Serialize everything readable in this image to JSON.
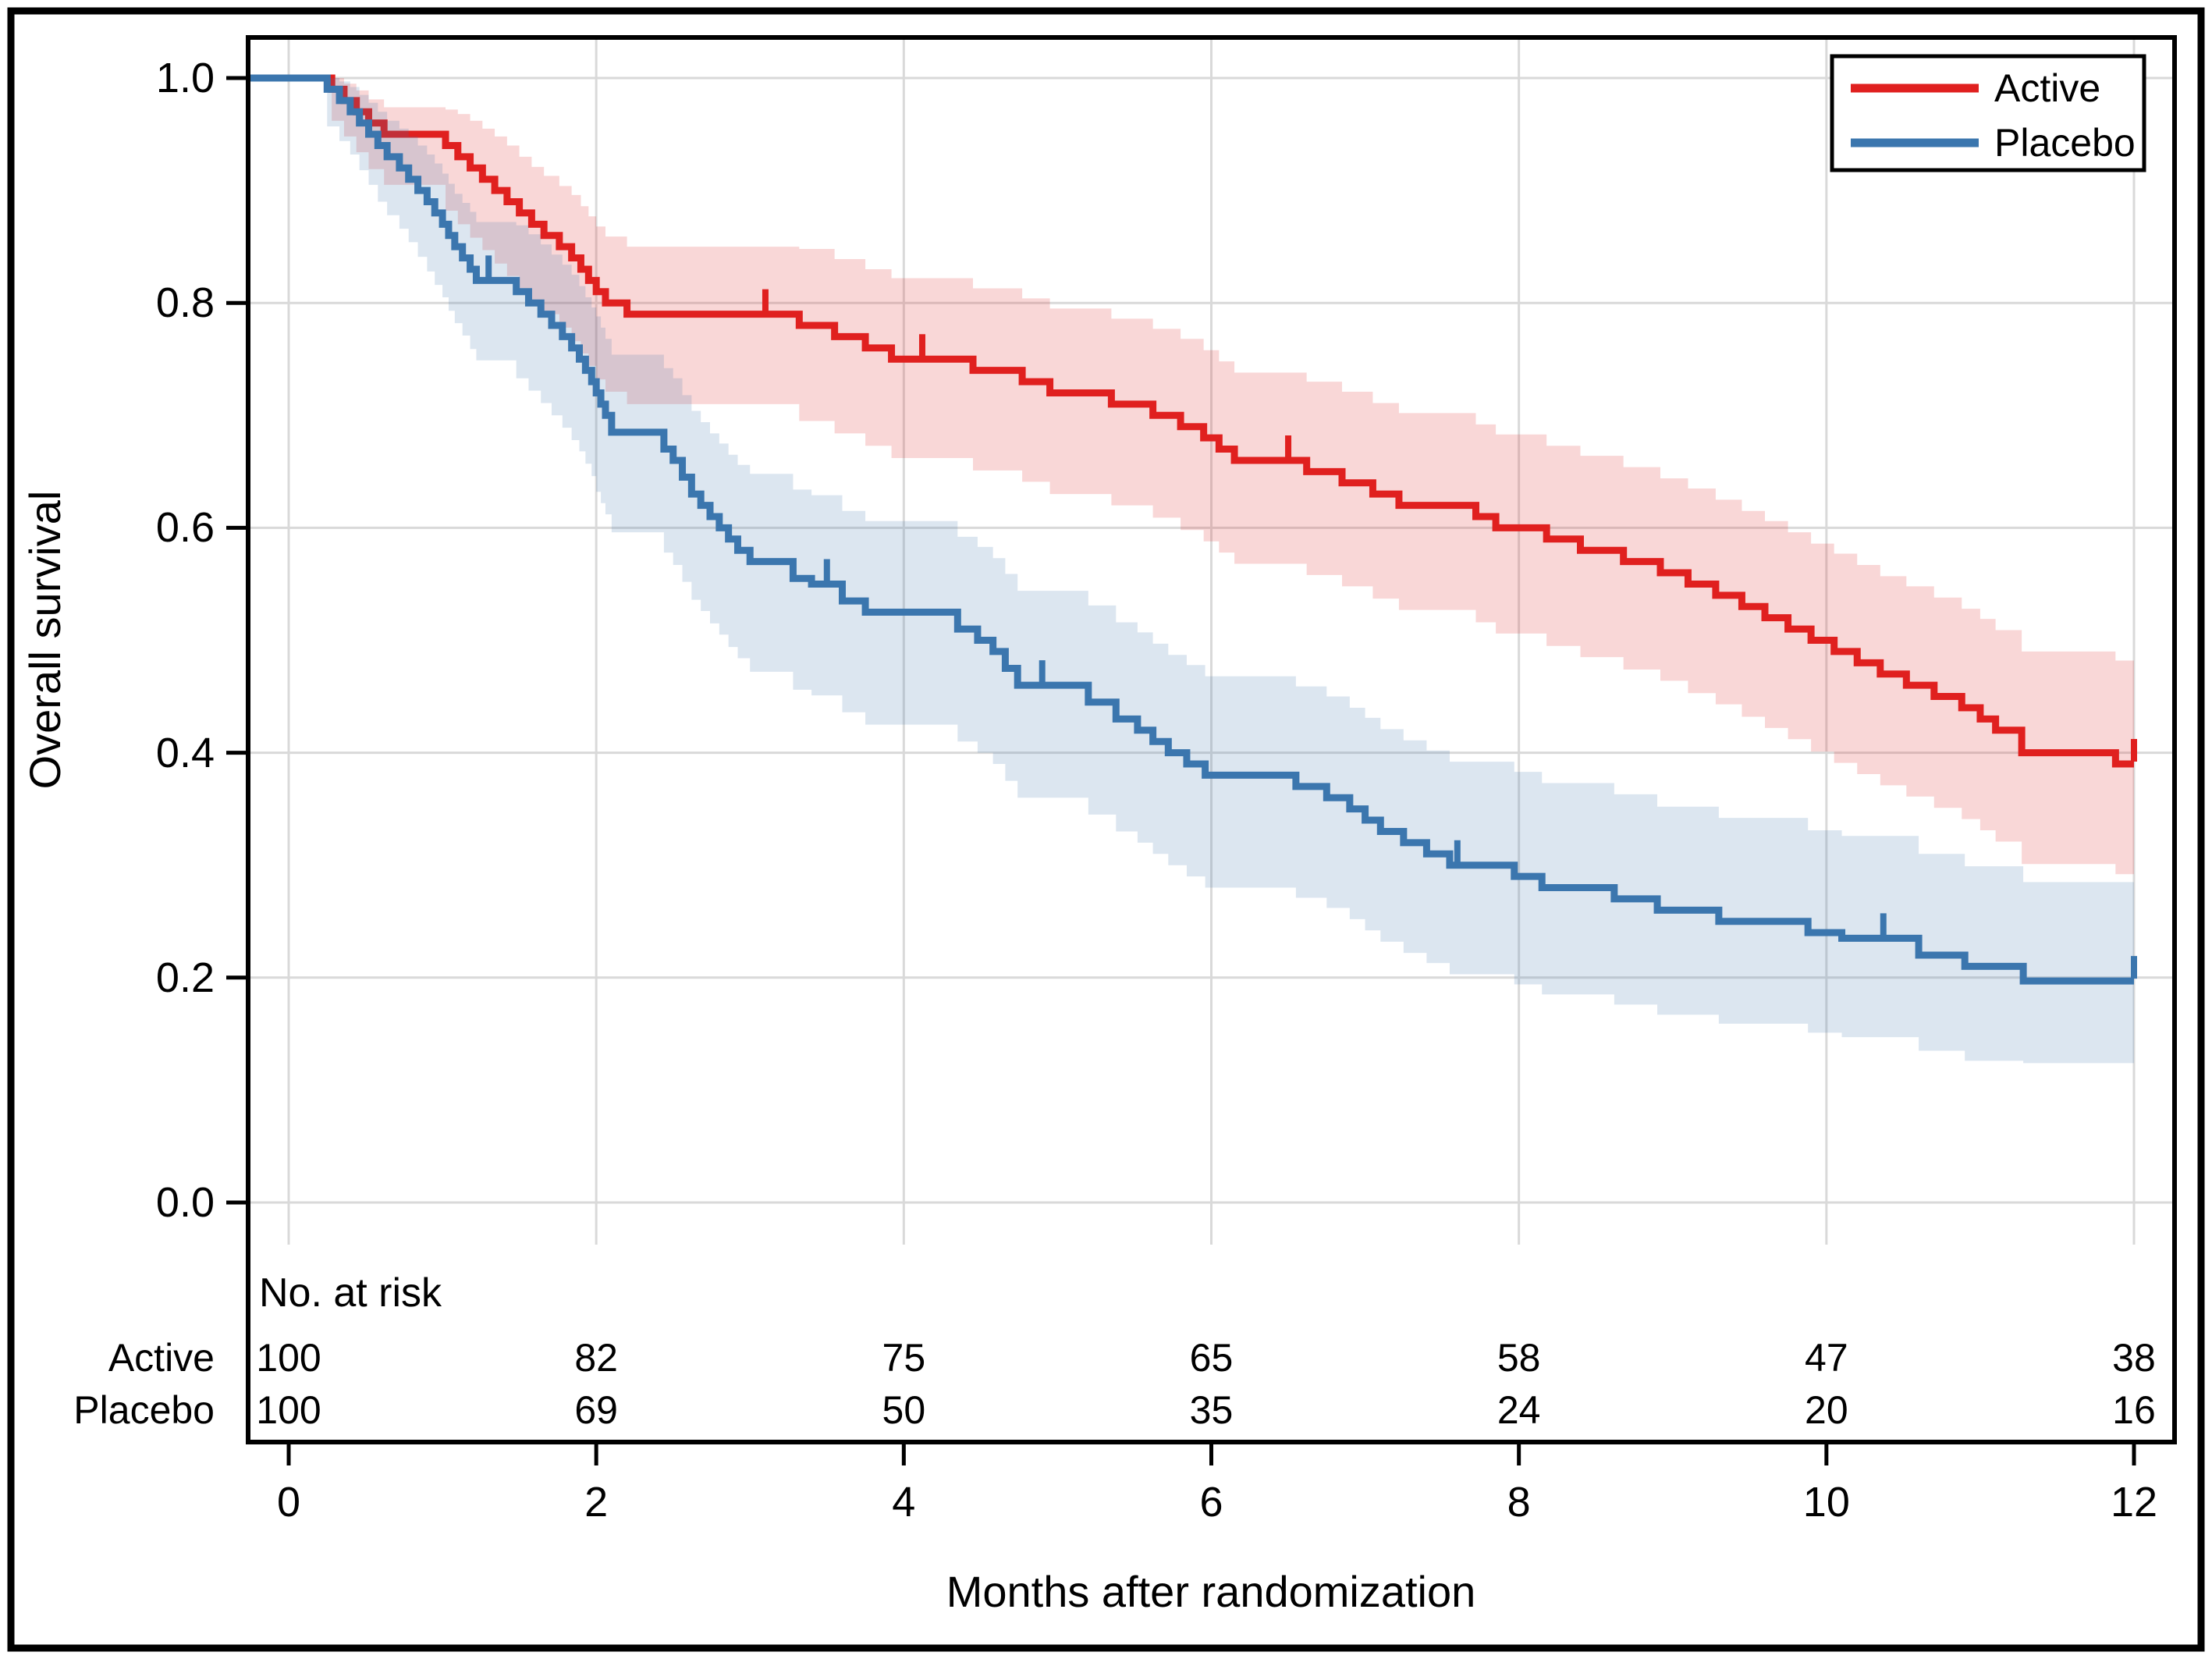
{
  "chart_data": {
    "type": "km_survival_step",
    "xlabel": "Months after randomization",
    "ylabel": "Overall survival",
    "xlim": [
      0,
      12
    ],
    "ylim": [
      0.0,
      1.0
    ],
    "x_ticks": [
      "0",
      "2",
      "4",
      "6",
      "8",
      "10",
      "12"
    ],
    "x_tick_values": [
      0,
      2,
      4,
      6,
      8,
      10,
      12
    ],
    "y_ticks": [
      "1.0",
      "0.8",
      "0.6",
      "0.4",
      "0.2",
      "0.0"
    ],
    "y_tick_values": [
      1.0,
      0.8,
      0.6,
      0.4,
      0.2,
      0.0
    ],
    "grid": true,
    "legend_position": "top-right",
    "colors": {
      "active_line": "#e0201f",
      "placebo_line": "#3b76ae",
      "gridline": "#d9d9d9",
      "frame": "#000000",
      "ci_band_opacity": 0.18
    },
    "series": [
      {
        "name": "Active",
        "color": "#e0201f",
        "steps": [
          [
            0.0,
            1.0,
            1.0,
            1.0
          ],
          [
            0.28,
            0.99,
            0.962,
            1.0
          ],
          [
            0.36,
            0.98,
            0.948,
            0.995
          ],
          [
            0.44,
            0.97,
            0.934,
            0.989
          ],
          [
            0.52,
            0.96,
            0.919,
            0.981
          ],
          [
            0.62,
            0.95,
            0.905,
            0.974
          ],
          [
            1.02,
            0.94,
            0.882,
            0.972
          ],
          [
            1.1,
            0.93,
            0.87,
            0.968
          ],
          [
            1.18,
            0.92,
            0.858,
            0.962
          ],
          [
            1.26,
            0.91,
            0.847,
            0.955
          ],
          [
            1.34,
            0.9,
            0.835,
            0.948
          ],
          [
            1.42,
            0.89,
            0.824,
            0.94
          ],
          [
            1.5,
            0.88,
            0.812,
            0.93
          ],
          [
            1.58,
            0.87,
            0.801,
            0.921
          ],
          [
            1.66,
            0.86,
            0.79,
            0.913
          ],
          [
            1.76,
            0.85,
            0.778,
            0.904
          ],
          [
            1.84,
            0.84,
            0.766,
            0.896
          ],
          [
            1.9,
            0.83,
            0.755,
            0.886
          ],
          [
            1.95,
            0.82,
            0.744,
            0.877
          ],
          [
            2.0,
            0.81,
            0.732,
            0.868
          ],
          [
            2.06,
            0.8,
            0.721,
            0.859
          ],
          [
            2.2,
            0.79,
            0.71,
            0.85
          ],
          [
            3.32,
            0.78,
            0.695,
            0.848
          ],
          [
            3.55,
            0.77,
            0.684,
            0.839
          ],
          [
            3.75,
            0.76,
            0.673,
            0.83
          ],
          [
            3.92,
            0.75,
            0.662,
            0.822
          ],
          [
            4.45,
            0.74,
            0.651,
            0.813
          ],
          [
            4.77,
            0.73,
            0.641,
            0.804
          ],
          [
            4.95,
            0.72,
            0.63,
            0.795
          ],
          [
            5.35,
            0.71,
            0.62,
            0.786
          ],
          [
            5.62,
            0.7,
            0.609,
            0.777
          ],
          [
            5.8,
            0.69,
            0.598,
            0.768
          ],
          [
            5.95,
            0.68,
            0.588,
            0.758
          ],
          [
            6.05,
            0.67,
            0.578,
            0.748
          ],
          [
            6.15,
            0.66,
            0.568,
            0.738
          ],
          [
            6.62,
            0.65,
            0.558,
            0.73
          ],
          [
            6.85,
            0.64,
            0.548,
            0.721
          ],
          [
            7.05,
            0.63,
            0.537,
            0.711
          ],
          [
            7.22,
            0.62,
            0.527,
            0.702
          ],
          [
            7.72,
            0.61,
            0.516,
            0.692
          ],
          [
            7.85,
            0.6,
            0.506,
            0.683
          ],
          [
            8.18,
            0.59,
            0.495,
            0.673
          ],
          [
            8.4,
            0.58,
            0.485,
            0.664
          ],
          [
            8.68,
            0.57,
            0.474,
            0.654
          ],
          [
            8.92,
            0.56,
            0.464,
            0.644
          ],
          [
            9.1,
            0.55,
            0.453,
            0.635
          ],
          [
            9.28,
            0.54,
            0.443,
            0.625
          ],
          [
            9.45,
            0.53,
            0.432,
            0.615
          ],
          [
            9.6,
            0.52,
            0.422,
            0.606
          ],
          [
            9.75,
            0.51,
            0.412,
            0.596
          ],
          [
            9.9,
            0.5,
            0.401,
            0.586
          ],
          [
            10.05,
            0.49,
            0.391,
            0.577
          ],
          [
            10.2,
            0.48,
            0.381,
            0.567
          ],
          [
            10.35,
            0.47,
            0.371,
            0.557
          ],
          [
            10.52,
            0.46,
            0.361,
            0.548
          ],
          [
            10.7,
            0.45,
            0.351,
            0.538
          ],
          [
            10.88,
            0.44,
            0.341,
            0.528
          ],
          [
            11.0,
            0.43,
            0.331,
            0.519
          ],
          [
            11.1,
            0.42,
            0.321,
            0.509
          ],
          [
            11.27,
            0.4,
            0.301,
            0.49
          ],
          [
            11.88,
            0.39,
            0.292,
            0.482
          ]
        ],
        "censor_times": [
          3.1,
          4.12,
          6.5,
          12.0
        ]
      },
      {
        "name": "Placebo",
        "color": "#3b76ae",
        "steps": [
          [
            0.0,
            1.0,
            1.0,
            1.0
          ],
          [
            0.25,
            0.99,
            0.957,
            1.0
          ],
          [
            0.33,
            0.98,
            0.944,
            0.997
          ],
          [
            0.4,
            0.97,
            0.932,
            0.992
          ],
          [
            0.46,
            0.96,
            0.918,
            0.985
          ],
          [
            0.52,
            0.95,
            0.905,
            0.978
          ],
          [
            0.58,
            0.94,
            0.89,
            0.97
          ],
          [
            0.64,
            0.93,
            0.878,
            0.962
          ],
          [
            0.72,
            0.92,
            0.866,
            0.955
          ],
          [
            0.78,
            0.91,
            0.854,
            0.948
          ],
          [
            0.84,
            0.9,
            0.841,
            0.94
          ],
          [
            0.9,
            0.89,
            0.828,
            0.932
          ],
          [
            0.95,
            0.88,
            0.816,
            0.924
          ],
          [
            1.0,
            0.87,
            0.805,
            0.915
          ],
          [
            1.04,
            0.86,
            0.793,
            0.906
          ],
          [
            1.08,
            0.85,
            0.782,
            0.897
          ],
          [
            1.13,
            0.84,
            0.771,
            0.889
          ],
          [
            1.18,
            0.83,
            0.759,
            0.881
          ],
          [
            1.22,
            0.82,
            0.749,
            0.872
          ],
          [
            1.48,
            0.81,
            0.733,
            0.869
          ],
          [
            1.56,
            0.8,
            0.722,
            0.861
          ],
          [
            1.64,
            0.79,
            0.711,
            0.852
          ],
          [
            1.71,
            0.78,
            0.7,
            0.843
          ],
          [
            1.78,
            0.77,
            0.689,
            0.834
          ],
          [
            1.84,
            0.76,
            0.678,
            0.825
          ],
          [
            1.89,
            0.75,
            0.668,
            0.815
          ],
          [
            1.93,
            0.74,
            0.657,
            0.805
          ],
          [
            1.97,
            0.73,
            0.646,
            0.796
          ],
          [
            2.0,
            0.72,
            0.632,
            0.788
          ],
          [
            2.03,
            0.71,
            0.622,
            0.778
          ],
          [
            2.06,
            0.7,
            0.612,
            0.768
          ],
          [
            2.1,
            0.685,
            0.596,
            0.754
          ],
          [
            2.44,
            0.67,
            0.578,
            0.742
          ],
          [
            2.5,
            0.66,
            0.567,
            0.733
          ],
          [
            2.56,
            0.645,
            0.552,
            0.718
          ],
          [
            2.62,
            0.63,
            0.536,
            0.704
          ],
          [
            2.68,
            0.62,
            0.526,
            0.694
          ],
          [
            2.74,
            0.61,
            0.515,
            0.684
          ],
          [
            2.8,
            0.6,
            0.505,
            0.675
          ],
          [
            2.86,
            0.59,
            0.494,
            0.665
          ],
          [
            2.92,
            0.58,
            0.484,
            0.656
          ],
          [
            3.0,
            0.57,
            0.472,
            0.648
          ],
          [
            3.28,
            0.555,
            0.456,
            0.634
          ],
          [
            3.4,
            0.55,
            0.451,
            0.629
          ],
          [
            3.6,
            0.535,
            0.436,
            0.615
          ],
          [
            3.75,
            0.525,
            0.425,
            0.606
          ],
          [
            4.35,
            0.51,
            0.41,
            0.592
          ],
          [
            4.48,
            0.5,
            0.4,
            0.583
          ],
          [
            4.58,
            0.49,
            0.39,
            0.573
          ],
          [
            4.66,
            0.475,
            0.375,
            0.559
          ],
          [
            4.74,
            0.46,
            0.36,
            0.544
          ],
          [
            5.2,
            0.445,
            0.345,
            0.531
          ],
          [
            5.38,
            0.43,
            0.33,
            0.516
          ],
          [
            5.52,
            0.42,
            0.32,
            0.507
          ],
          [
            5.62,
            0.41,
            0.31,
            0.497
          ],
          [
            5.72,
            0.4,
            0.3,
            0.487
          ],
          [
            5.84,
            0.39,
            0.29,
            0.478
          ],
          [
            5.96,
            0.38,
            0.28,
            0.468
          ],
          [
            6.55,
            0.37,
            0.271,
            0.459
          ],
          [
            6.75,
            0.36,
            0.262,
            0.45
          ],
          [
            6.9,
            0.35,
            0.252,
            0.44
          ],
          [
            7.0,
            0.34,
            0.242,
            0.431
          ],
          [
            7.1,
            0.33,
            0.232,
            0.421
          ],
          [
            7.25,
            0.32,
            0.222,
            0.411
          ],
          [
            7.4,
            0.31,
            0.213,
            0.402
          ],
          [
            7.55,
            0.3,
            0.203,
            0.392
          ],
          [
            7.97,
            0.29,
            0.194,
            0.383
          ],
          [
            8.15,
            0.28,
            0.185,
            0.373
          ],
          [
            8.62,
            0.27,
            0.176,
            0.363
          ],
          [
            8.9,
            0.26,
            0.167,
            0.352
          ],
          [
            9.3,
            0.25,
            0.159,
            0.342
          ],
          [
            9.88,
            0.24,
            0.151,
            0.331
          ],
          [
            10.1,
            0.235,
            0.147,
            0.326
          ],
          [
            10.6,
            0.22,
            0.135,
            0.31
          ],
          [
            10.9,
            0.21,
            0.126,
            0.299
          ],
          [
            11.28,
            0.197,
            0.124,
            0.285
          ]
        ],
        "censor_times": [
          1.3,
          3.5,
          4.9,
          7.6,
          10.37,
          12.0
        ]
      }
    ],
    "at_risk": {
      "header": "No. at risk",
      "times": [
        0,
        2,
        4,
        6,
        8,
        10,
        12
      ],
      "rows": [
        {
          "label": "Active",
          "counts": [
            "100",
            "82",
            "75",
            "65",
            "58",
            "47",
            "38"
          ]
        },
        {
          "label": "Placebo",
          "counts": [
            "100",
            "69",
            "50",
            "35",
            "24",
            "20",
            "16"
          ]
        }
      ]
    }
  }
}
